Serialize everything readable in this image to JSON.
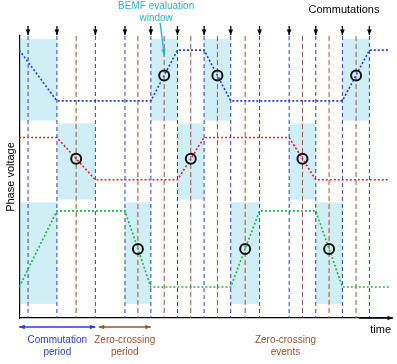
{
  "chart_data": {
    "type": "line",
    "y_label": "Phase voltage",
    "x_label": "time",
    "xlim": [
      0,
      100
    ],
    "ylim": [
      0,
      100
    ],
    "tick_labels": false,
    "grid": false,
    "series": [
      {
        "color": "#1f3fe0",
        "line_style": "dotted",
        "x": [
          0,
          10.2,
          35.6,
          42.8,
          50,
          57.2,
          87.4,
          94.7,
          100
        ],
        "values": [
          95,
          77,
          77,
          95,
          95,
          77,
          77,
          95,
          95
        ]
      },
      {
        "color": "#e0202a",
        "line_style": "dotted",
        "x": [
          0,
          10.2,
          20.6,
          42.8,
          50,
          73,
          80.2,
          100
        ],
        "values": [
          64,
          64,
          49,
          49,
          64,
          64,
          49,
          49
        ]
      },
      {
        "color": "#1fb83a",
        "line_style": "dotted",
        "x": [
          0,
          10.2,
          28.6,
          35.6,
          57.2,
          65,
          80.2,
          87.4,
          100
        ],
        "values": [
          11,
          38,
          38,
          11,
          11,
          38,
          38,
          11,
          11
        ]
      },
      {
        "type": "scatter",
        "marker": "circle",
        "color": "#111111",
        "x": [
          39.2,
          53.6,
          91.1,
          15.4,
          46.4,
          76.6,
          32.1,
          61.1,
          83.8
        ],
        "values": [
          86,
          86,
          86,
          56.5,
          56.5,
          56.5,
          24.5,
          24.5,
          24.5
        ]
      }
    ],
    "commutations": {
      "label": "Commutations",
      "color": "#2b3fd0",
      "x": [
        2.4,
        10.2,
        20.6,
        28.6,
        35.6,
        42.8,
        50,
        57.2,
        65,
        73,
        80.2,
        87.4,
        94.7
      ]
    },
    "bemf_windows": {
      "label": "BEMF evaluation window",
      "color": "#2ab0d0",
      "x": [
        [
          0,
          10.2
        ],
        [
          35.6,
          42.8
        ],
        [
          50,
          57.2
        ],
        [
          87.4,
          94.7
        ],
        [
          10.2,
          20.6
        ],
        [
          42.8,
          50
        ],
        [
          73,
          80.2
        ],
        [
          0,
          10.2
        ],
        [
          28.6,
          35.6
        ],
        [
          57.2,
          65
        ],
        [
          80.2,
          87.4
        ]
      ],
      "y": [
        [
          70,
          99
        ],
        [
          70,
          99
        ],
        [
          70,
          99
        ],
        [
          70,
          99
        ],
        [
          42,
          69
        ],
        [
          42,
          69
        ],
        [
          42,
          69
        ],
        [
          5,
          41
        ],
        [
          5,
          41
        ],
        [
          5,
          41
        ],
        [
          5,
          41
        ]
      ]
    },
    "commutation_period": {
      "label": "Commutation period",
      "color": "#2b3fd0",
      "x": [
        0,
        20.6
      ]
    },
    "zero_crossing_period": {
      "label": "Zero-crossing period",
      "color": "#a0522d",
      "x": [
        21.5,
        35.6
      ]
    },
    "zero_crossing_events": {
      "label": "Zero-crossing events",
      "color": "#a0522d"
    }
  }
}
